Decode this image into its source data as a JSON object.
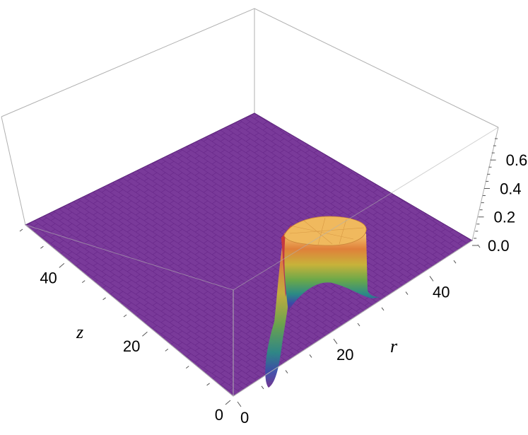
{
  "chart_data": {
    "type": "surface3d",
    "title": "",
    "axes": {
      "r": {
        "label": "r",
        "range": [
          0,
          50
        ],
        "ticks": [
          "0",
          "20",
          "40"
        ]
      },
      "z": {
        "label": "z",
        "range": [
          0,
          50
        ],
        "ticks": [
          "0",
          "20",
          "40"
        ]
      },
      "value": {
        "label": "",
        "range": [
          0,
          0.75
        ],
        "ticks": [
          "0.0",
          "0.2",
          "0.4",
          "0.6"
        ]
      }
    },
    "box": true,
    "surface": {
      "baseline": 0.0,
      "feature": "raised plateau near the r-edge of the grid",
      "plateau_height": 0.68,
      "r_extent": [
        8,
        30
      ],
      "z_extent": [
        0,
        14
      ],
      "colormap": [
        "#6b2a8c",
        "#3a4ba8",
        "#2b8a86",
        "#6aa84a",
        "#c8b23a",
        "#e0803a",
        "#f5c66e"
      ],
      "base_color": "#7a3a9a"
    }
  }
}
